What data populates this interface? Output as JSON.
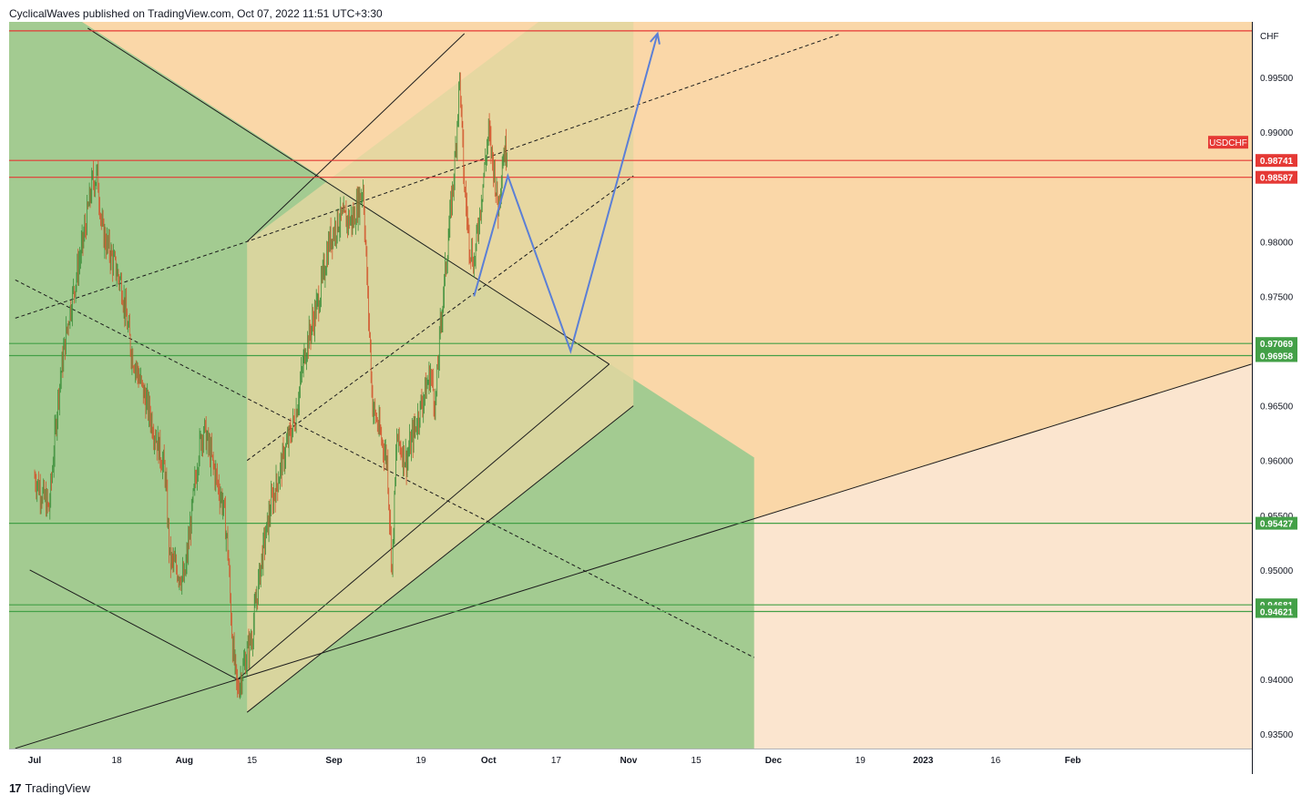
{
  "header": {
    "publisher_line": "CyclicalWaves published on TradingView.com, Oct 07, 2022 11:51 UTC+3:30"
  },
  "footer": {
    "brand": "TradingView",
    "logo_glyph": "17"
  },
  "colors": {
    "orange_zone": "#fad7a8",
    "light_zone": "#fbe5cf",
    "green_zone": "#a3cb91",
    "yellow_zone": "#e2d7a0",
    "candle_up": "#3c8f3a",
    "candle_down": "#d2542c",
    "resistance": "#e53935",
    "support": "#43a047",
    "projection": "#5b7fd6"
  },
  "chart_data": {
    "type": "candlestick",
    "symbol": "USDCHF",
    "currency_label": "CHF",
    "y_ticks": [
      0.995,
      0.99,
      0.98,
      0.975,
      0.965,
      0.96,
      0.955,
      0.95,
      0.94,
      0.935
    ],
    "y_tick_labels": [
      "0.99500",
      "0.99000",
      "0.98000",
      "0.97500",
      "0.96500",
      "0.96000",
      "0.95500",
      "0.95000",
      "0.94000",
      "0.93500"
    ],
    "x_ticks": [
      "Jul",
      "18",
      "Aug",
      "15",
      "Sep",
      "19",
      "Oct",
      "17",
      "Nov",
      "15",
      "Dec",
      "19",
      "2023",
      "16",
      "Feb"
    ],
    "x_tick_bold": [
      "Jul",
      "Aug",
      "Sep",
      "Oct",
      "Nov",
      "Dec",
      "2023",
      "Feb"
    ],
    "horizontal_levels": [
      {
        "value": 0.99925,
        "label": "",
        "color": "#e53935"
      },
      {
        "value": 0.98741,
        "label": "0.98741",
        "color": "#e53935"
      },
      {
        "value": 0.98587,
        "label": "0.98587",
        "color": "#e53935"
      },
      {
        "value": 0.97069,
        "label": "0.97069",
        "color": "#43a047"
      },
      {
        "value": 0.96958,
        "label": "0.96958",
        "color": "#43a047"
      },
      {
        "value": 0.95427,
        "label": "0.95427",
        "color": "#43a047"
      },
      {
        "value": 0.94681,
        "label": "0.94681",
        "color": "#43a047"
      },
      {
        "value": 0.94621,
        "label": "0.94621",
        "color": "#43a047"
      }
    ],
    "price_path": [
      [
        "2022-07-01",
        0.9585
      ],
      [
        "2022-07-04",
        0.9555
      ],
      [
        "2022-07-06",
        0.9665
      ],
      [
        "2022-07-08",
        0.973
      ],
      [
        "2022-07-11",
        0.98
      ],
      [
        "2022-07-13",
        0.9855
      ],
      [
        "2022-07-14",
        0.986
      ],
      [
        "2022-07-15",
        0.981
      ],
      [
        "2022-07-19",
        0.976
      ],
      [
        "2022-07-21",
        0.97
      ],
      [
        "2022-07-25",
        0.964
      ],
      [
        "2022-07-28",
        0.959
      ],
      [
        "2022-07-29",
        0.951
      ],
      [
        "2022-08-01",
        0.949
      ],
      [
        "2022-08-04",
        0.961
      ],
      [
        "2022-08-05",
        0.963
      ],
      [
        "2022-08-09",
        0.956
      ],
      [
        "2022-08-10",
        0.952
      ],
      [
        "2022-08-11",
        0.943
      ],
      [
        "2022-08-12",
        0.939
      ],
      [
        "2022-08-15",
        0.944
      ],
      [
        "2022-08-17",
        0.951
      ],
      [
        "2022-08-19",
        0.956
      ],
      [
        "2022-08-22",
        0.961
      ],
      [
        "2022-08-24",
        0.964
      ],
      [
        "2022-08-26",
        0.97
      ],
      [
        "2022-08-29",
        0.975
      ],
      [
        "2022-08-31",
        0.98
      ],
      [
        "2022-09-02",
        0.982
      ],
      [
        "2022-09-05",
        0.982
      ],
      [
        "2022-09-07",
        0.985
      ],
      [
        "2022-09-08",
        0.975
      ],
      [
        "2022-09-09",
        0.965
      ],
      [
        "2022-09-12",
        0.96
      ],
      [
        "2022-09-13",
        0.95
      ],
      [
        "2022-09-14",
        0.962
      ],
      [
        "2022-09-16",
        0.96
      ],
      [
        "2022-09-19",
        0.965
      ],
      [
        "2022-09-21",
        0.968
      ],
      [
        "2022-09-22",
        0.965
      ],
      [
        "2022-09-23",
        0.972
      ],
      [
        "2022-09-26",
        0.987
      ],
      [
        "2022-09-27",
        0.995
      ],
      [
        "2022-09-28",
        0.985
      ],
      [
        "2022-09-29",
        0.98
      ],
      [
        "2022-09-30",
        0.978
      ],
      [
        "2022-10-03",
        0.99
      ],
      [
        "2022-10-04",
        0.987
      ],
      [
        "2022-10-05",
        0.983
      ],
      [
        "2022-10-06",
        0.988
      ],
      [
        "2022-10-07",
        0.9885
      ]
    ],
    "projection_path": [
      [
        "2022-09-30",
        0.975
      ],
      [
        "2022-10-07",
        0.986
      ],
      [
        "2022-10-20",
        0.97
      ],
      [
        "2022-11-07",
        0.999
      ]
    ],
    "trend_lines": [
      {
        "style": "solid",
        "points": [
          [
            "2022-06-30",
            0.95
          ],
          [
            "2022-08-12",
            0.94
          ],
          [
            "2022-10-28",
            0.9688
          ]
        ]
      },
      {
        "style": "solid",
        "points": [
          [
            "2022-07-12",
            0.9995
          ],
          [
            "2022-10-28",
            0.9688
          ]
        ]
      },
      {
        "style": "solid",
        "points": [
          [
            "2022-06-27",
            0.9337
          ],
          [
            "2023-03-10",
            0.9688
          ]
        ]
      },
      {
        "style": "solid",
        "points": [
          [
            "2022-08-14",
            0.937
          ],
          [
            "2022-11-02",
            0.965
          ]
        ]
      },
      {
        "style": "solid",
        "points": [
          [
            "2022-08-14",
            0.98
          ],
          [
            "2022-09-28",
            0.999
          ]
        ]
      },
      {
        "style": "dashed",
        "points": [
          [
            "2022-06-27",
            0.973
          ],
          [
            "2022-08-14",
            0.98
          ],
          [
            "2022-12-15",
            0.999
          ]
        ]
      },
      {
        "style": "dashed",
        "points": [
          [
            "2022-08-14",
            0.96
          ],
          [
            "2022-11-02",
            0.986
          ]
        ]
      },
      {
        "style": "dashed",
        "points": [
          [
            "2022-06-27",
            0.9765
          ],
          [
            "2022-11-27",
            0.942
          ]
        ]
      }
    ],
    "shaded_zones": [
      {
        "color": "#a3cb91",
        "x_range": [
          "2022-06-27",
          "2022-11-27"
        ]
      },
      {
        "color": "#e2d7a0",
        "x_range": [
          "2022-08-14",
          "2022-11-02"
        ]
      }
    ]
  }
}
